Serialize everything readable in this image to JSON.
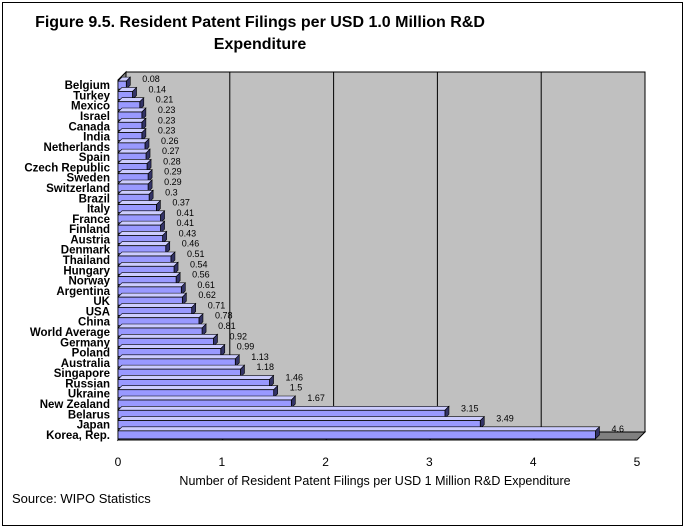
{
  "figure": {
    "title_line1": "Figure 9.5. Resident Patent Filings per USD 1.0 Million R&D",
    "title_line2": "Expenditure",
    "source": "Source: WIPO Statistics"
  },
  "chart_data": {
    "type": "bar",
    "orientation": "horizontal",
    "title": "Figure 9.5. Resident Patent Filings per USD 1.0 Million R&D Expenditure",
    "xlabel": "Number of Resident Patent Filings per USD 1 Million R&D Expenditure",
    "ylabel": "",
    "xlim": [
      0,
      5
    ],
    "xticks": [
      "0",
      "1",
      "2",
      "3",
      "4",
      "5"
    ],
    "grid": "vertical",
    "categories": [
      "Belgium",
      "Turkey",
      "Mexico",
      "Israel",
      "Canada",
      "India",
      "Netherlands",
      "Spain",
      "Czech Republic",
      "Sweden",
      "Switzerland",
      "Brazil",
      "Italy",
      "France",
      "Finland",
      "Austria",
      "Denmark",
      "Thailand",
      "Hungary",
      "Norway",
      "Argentina",
      "UK",
      "USA",
      "China",
      "World Average",
      "Germany",
      "Poland",
      "Australia",
      "Singapore",
      "Russian",
      "Ukraine",
      "New Zealand",
      "Belarus",
      "Japan",
      "Korea, Rep."
    ],
    "values": [
      0.08,
      0.14,
      0.21,
      0.23,
      0.23,
      0.23,
      0.26,
      0.27,
      0.28,
      0.29,
      0.29,
      0.3,
      0.37,
      0.41,
      0.41,
      0.43,
      0.46,
      0.51,
      0.54,
      0.56,
      0.61,
      0.62,
      0.71,
      0.78,
      0.81,
      0.92,
      0.99,
      1.13,
      1.18,
      1.46,
      1.5,
      1.67,
      3.15,
      3.49,
      4.6
    ],
    "value_labels": [
      "0.08",
      "0.14",
      "0.21",
      "0.23",
      "0.23",
      "0.23",
      "0.26",
      "0.27",
      "0.28",
      "0.29",
      "0.29",
      "0.3",
      "0.37",
      "0.41",
      "0.41",
      "0.43",
      "0.46",
      "0.51",
      "0.54",
      "0.56",
      "0.61",
      "0.62",
      "0.71",
      "0.78",
      "0.81",
      "0.92",
      "0.99",
      "1.13",
      "1.18",
      "1.46",
      "1.5",
      "1.67",
      "3.15",
      "3.49",
      "4.6"
    ],
    "colors": {
      "bar": "#9999ff",
      "bar_shadow": "#333366",
      "plot_bg": "#c0c0c0",
      "floor": "#808080"
    }
  }
}
